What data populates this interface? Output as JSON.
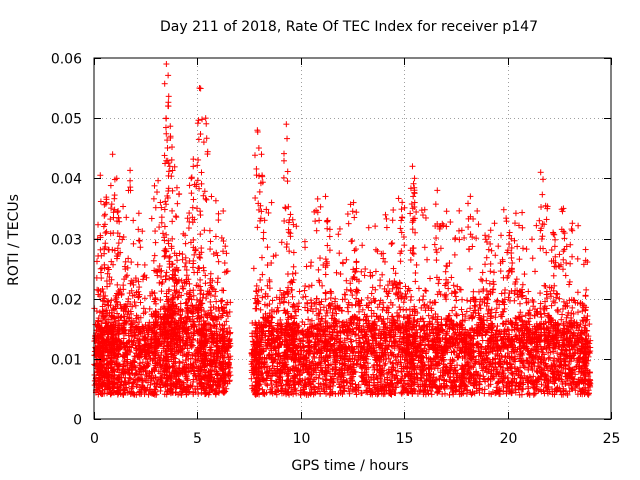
{
  "chart_data": {
    "type": "scatter",
    "title": "Day 211 of 2018, Rate Of TEC Index for receiver p147",
    "xlabel": "GPS time / hours",
    "ylabel": "ROTI / TECUs",
    "xlim": [
      0,
      25
    ],
    "ylim": [
      0,
      0.06
    ],
    "xticks": [
      0,
      5,
      10,
      15,
      20,
      25
    ],
    "xtick_labels": [
      "0",
      "5",
      "10",
      "15",
      "20",
      "25"
    ],
    "yticks": [
      0,
      0.01,
      0.02,
      0.03,
      0.04,
      0.05,
      0.06
    ],
    "ytick_labels": [
      "0",
      "0.01",
      "0.02",
      "0.03",
      "0.04",
      "0.05",
      "0.06"
    ],
    "grid": true,
    "marker": "+",
    "series": [
      {
        "name": "ROTI",
        "color": "#ff0000",
        "data_gap_hours": [
          6.6,
          7.6
        ],
        "x": [
          0.1,
          0.3,
          0.5,
          0.8,
          1.0,
          1.3,
          1.6,
          2.0,
          2.4,
          2.8,
          3.1,
          3.4,
          3.6,
          3.8,
          4.0,
          4.3,
          4.6,
          5.0,
          5.2,
          5.5,
          5.8,
          6.1,
          6.4,
          7.8,
          8.0,
          8.4,
          8.8,
          9.2,
          9.5,
          9.8,
          10.2,
          10.6,
          11.0,
          11.4,
          11.8,
          12.2,
          12.6,
          13.0,
          13.4,
          13.8,
          14.2,
          14.6,
          15.0,
          15.3,
          15.6,
          16.0,
          16.4,
          16.8,
          17.2,
          17.6,
          18.0,
          18.4,
          18.8,
          19.2,
          19.6,
          20.0,
          20.4,
          20.8,
          21.2,
          21.6,
          22.0,
          22.4,
          22.8,
          23.2,
          23.6,
          23.9,
          0.9,
          1.1,
          3.5,
          3.6,
          3.7,
          5.1,
          5.4,
          4.7,
          7.9,
          8.1,
          9.3,
          9.5,
          15.4,
          15.5,
          20.1,
          21.6,
          22.2,
          22.7,
          14.9,
          11.3,
          12.6,
          18.2,
          16.6,
          0.6
        ],
        "y": [
          0.01,
          0.012,
          0.014,
          0.011,
          0.013,
          0.012,
          0.015,
          0.013,
          0.011,
          0.012,
          0.014,
          0.013,
          0.016,
          0.015,
          0.014,
          0.013,
          0.015,
          0.016,
          0.012,
          0.014,
          0.013,
          0.012,
          0.011,
          0.009,
          0.012,
          0.013,
          0.011,
          0.012,
          0.013,
          0.012,
          0.011,
          0.012,
          0.013,
          0.012,
          0.011,
          0.012,
          0.013,
          0.011,
          0.012,
          0.011,
          0.012,
          0.013,
          0.012,
          0.013,
          0.011,
          0.012,
          0.011,
          0.012,
          0.013,
          0.012,
          0.011,
          0.012,
          0.013,
          0.012,
          0.011,
          0.012,
          0.013,
          0.012,
          0.011,
          0.012,
          0.013,
          0.012,
          0.011,
          0.012,
          0.011,
          0.01,
          0.044,
          0.04,
          0.059,
          0.052,
          0.047,
          0.055,
          0.05,
          0.04,
          0.048,
          0.044,
          0.049,
          0.034,
          0.042,
          0.04,
          0.031,
          0.041,
          0.031,
          0.035,
          0.036,
          0.033,
          0.028,
          0.037,
          0.038,
          0.036
        ]
      }
    ]
  }
}
